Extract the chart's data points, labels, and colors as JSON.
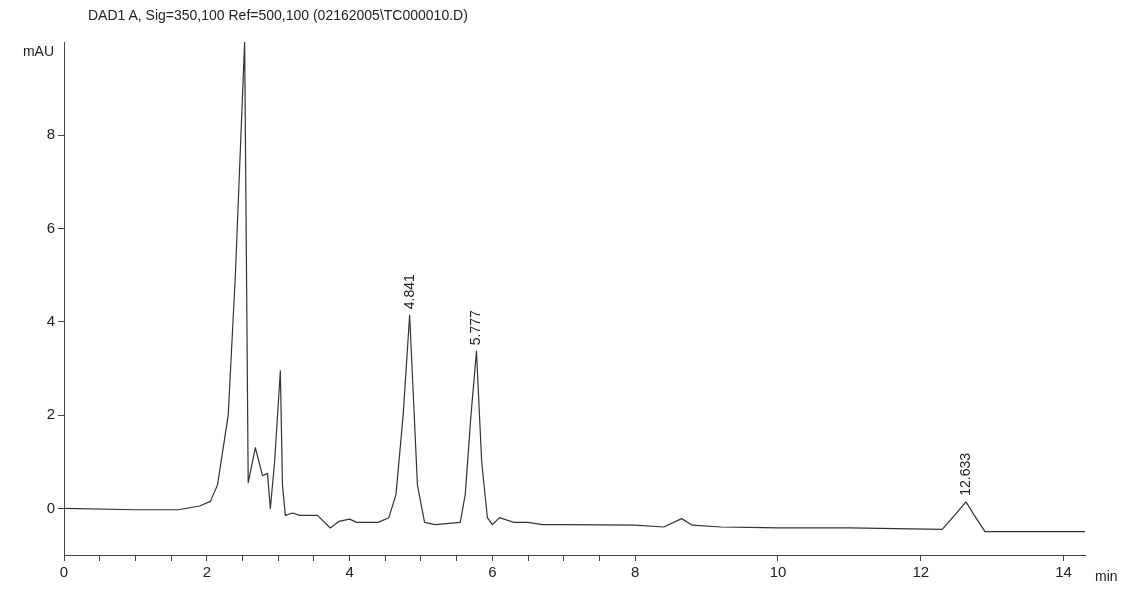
{
  "chart_data": {
    "type": "line",
    "title": "DAD1 A, Sig=350,100 Ref=500,100 (02162005\\TC000010.D)",
    "xlabel": "min",
    "ylabel": "mAU",
    "x": [
      0,
      1.0,
      1.6,
      1.9,
      2.05,
      2.15,
      2.3,
      2.4,
      2.53,
      2.58,
      2.68,
      2.78,
      2.85,
      2.89,
      2.95,
      3.03,
      3.06,
      3.1,
      3.2,
      3.3,
      3.55,
      3.73,
      3.85,
      4.0,
      4.1,
      4.4,
      4.55,
      4.65,
      4.75,
      4.841,
      4.95,
      5.05,
      5.2,
      5.55,
      5.62,
      5.7,
      5.777,
      5.85,
      5.93,
      6.0,
      6.1,
      6.3,
      6.5,
      6.7,
      7.0,
      8.0,
      8.4,
      8.65,
      8.8,
      9.2,
      10.0,
      11.0,
      12.3,
      12.5,
      12.633,
      12.75,
      12.9,
      14.3
    ],
    "series": [
      {
        "color": "#333333",
        "values": [
          0,
          -0.03,
          -0.03,
          0.05,
          0.15,
          0.5,
          2,
          5,
          10,
          0.55,
          1.3,
          0.7,
          0.75,
          0,
          1.0,
          2.95,
          0.5,
          -0.15,
          -0.1,
          -0.15,
          -0.15,
          -0.42,
          -0.28,
          -0.23,
          -0.3,
          -0.3,
          -0.2,
          0.3,
          2.0,
          4.14,
          0.5,
          -0.3,
          -0.35,
          -0.3,
          0.3,
          2.0,
          3.37,
          1.0,
          -0.2,
          -0.35,
          -0.2,
          -0.3,
          -0.3,
          -0.35,
          -0.35,
          -0.36,
          -0.4,
          -0.22,
          -0.36,
          -0.4,
          -0.42,
          -0.42,
          -0.45,
          -0.1,
          0.14,
          -0.15,
          -0.5,
          -0.5
        ]
      }
    ],
    "xlim": [
      0,
      14.3
    ],
    "xticks": [
      0,
      {
        "value": 0.5,
        "label": null
      },
      {
        "value": 1,
        "label": null
      },
      {
        "value": 1.5,
        "label": null
      },
      2,
      {
        "value": 2.5,
        "label": null
      },
      {
        "value": 3,
        "label": null
      },
      {
        "value": 3.5,
        "label": null
      },
      4,
      {
        "value": 4.5,
        "label": null
      },
      {
        "value": 5,
        "label": null
      },
      {
        "value": 5.5,
        "label": null
      },
      6,
      {
        "value": 6.5,
        "label": null
      },
      {
        "value": 7,
        "label": null
      },
      {
        "value": 7.5,
        "label": null
      },
      8,
      10,
      12,
      14
    ],
    "ylim": [
      -1,
      10
    ],
    "yticks": [
      0,
      2,
      4,
      6,
      8
    ],
    "annotations": [
      {
        "text": "4.841",
        "x": 4.841,
        "y": 4.14
      },
      {
        "text": "5.777",
        "x": 5.777,
        "y": 3.37
      },
      {
        "text": "12.633",
        "x": 12.633,
        "y": 0.14
      }
    ],
    "grid": false,
    "legend": false,
    "marker": "none",
    "line_style": "solid"
  }
}
